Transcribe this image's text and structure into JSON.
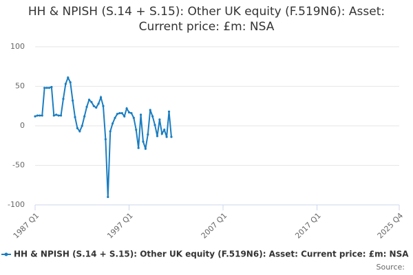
{
  "chart_data": {
    "type": "line",
    "title": "HH & NPISH (S.14 + S.15): Other UK equity (F.519N6): Asset: Current price: £m: NSA",
    "source": "Source:",
    "categories": [
      "1987 Q1",
      null,
      null,
      null,
      null,
      null,
      null,
      null,
      null,
      null,
      null,
      null,
      null,
      null,
      null,
      null,
      null,
      null,
      null,
      null,
      null,
      null,
      null,
      null,
      null,
      null,
      null,
      null,
      null,
      null,
      null,
      null,
      null,
      null,
      null,
      null,
      null,
      null,
      null,
      null,
      "1997 Q1",
      null,
      null,
      null,
      null,
      null,
      null,
      null,
      null,
      null,
      null,
      null,
      null,
      null,
      null,
      null,
      null,
      null,
      null,
      null,
      null,
      null,
      null,
      null,
      null,
      null,
      null,
      null,
      null,
      null,
      null,
      null,
      null,
      null,
      null,
      null,
      null,
      null,
      null,
      null,
      "2007 Q1",
      null,
      null,
      null,
      null,
      null,
      null,
      null,
      null,
      null,
      null,
      null,
      null,
      null,
      null,
      null,
      null,
      null,
      null,
      null,
      null,
      null,
      null,
      null,
      null,
      null,
      null,
      null,
      null,
      null,
      null,
      null,
      null,
      null,
      null,
      null,
      null,
      null,
      null,
      null,
      "2017 Q1",
      null,
      null,
      null,
      null,
      null,
      null,
      null,
      null,
      null,
      null,
      null,
      null,
      null,
      null,
      null,
      null,
      null,
      null,
      null,
      null,
      null,
      null,
      null,
      null,
      null,
      null,
      null,
      null,
      null,
      null,
      null,
      null,
      null,
      null,
      "2025 Q4"
    ],
    "series": [
      {
        "name": "HH & NPISH (S.14 + S.15): Other UK equity (F.519N6): Asset: Current price: £m: NSA",
        "color": "#1a7dc0",
        "values": [
          12,
          13,
          13,
          13,
          48,
          48,
          48,
          49,
          13,
          14,
          13,
          13,
          34,
          53,
          61,
          55,
          32,
          11,
          -3,
          -7,
          0,
          12,
          24,
          33,
          30,
          25,
          23,
          28,
          36,
          25,
          -17,
          -90,
          -7,
          3,
          10,
          15,
          16,
          16,
          12,
          22,
          17,
          16,
          10,
          -5,
          -28,
          14,
          -20,
          -29,
          -11,
          20,
          12,
          1,
          -13,
          8,
          -10,
          -5,
          -14,
          18,
          -14,
          null,
          null,
          null,
          null,
          null,
          null,
          null,
          null,
          null,
          null,
          null,
          null,
          null,
          null,
          null,
          null,
          null,
          null,
          null,
          null,
          null,
          null,
          null,
          null,
          null,
          null,
          null,
          null,
          null,
          null,
          null,
          null,
          null,
          null,
          null,
          null,
          null,
          null,
          null,
          null,
          null,
          null,
          null,
          null,
          null,
          null,
          null,
          null,
          null,
          null,
          null,
          null,
          null,
          null,
          null,
          null,
          null,
          null,
          null,
          null,
          null,
          null,
          null,
          null,
          null,
          null,
          null,
          null,
          null,
          null,
          null,
          null,
          null,
          null,
          null,
          null,
          null,
          null,
          null,
          null,
          null,
          null,
          null,
          null,
          null,
          null,
          null,
          null,
          null,
          null,
          null,
          null,
          null,
          null,
          null,
          null,
          null
        ]
      }
    ],
    "ylim": [
      -100,
      100
    ],
    "yticks": [
      -100,
      -50,
      0,
      50,
      100
    ],
    "grid": true
  }
}
